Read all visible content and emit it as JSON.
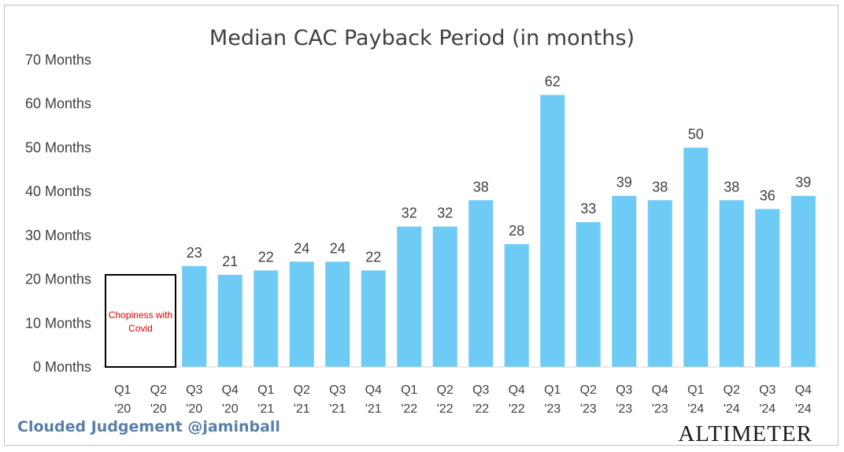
{
  "chart_data": {
    "type": "bar",
    "title": "Median CAC Payback Period (in months)",
    "categories": [
      [
        "Q1",
        "'20"
      ],
      [
        "Q2",
        "'20"
      ],
      [
        "Q3",
        "'20"
      ],
      [
        "Q4",
        "'20"
      ],
      [
        "Q1",
        "'21"
      ],
      [
        "Q2",
        "'21"
      ],
      [
        "Q3",
        "'21"
      ],
      [
        "Q4",
        "'21"
      ],
      [
        "Q1",
        "'22"
      ],
      [
        "Q2",
        "'22"
      ],
      [
        "Q3",
        "'22"
      ],
      [
        "Q4",
        "'22"
      ],
      [
        "Q1",
        "'23"
      ],
      [
        "Q2",
        "'23"
      ],
      [
        "Q3",
        "'23"
      ],
      [
        "Q4",
        "'23"
      ],
      [
        "Q1",
        "'24"
      ],
      [
        "Q2",
        "'24"
      ],
      [
        "Q3",
        "'24"
      ],
      [
        "Q4",
        "'24"
      ]
    ],
    "values": [
      null,
      null,
      23,
      21,
      22,
      24,
      24,
      22,
      32,
      32,
      38,
      28,
      62,
      33,
      39,
      38,
      50,
      38,
      36,
      39
    ],
    "data_labels": [
      "",
      "",
      "23",
      "21",
      "22",
      "24",
      "24",
      "22",
      "32",
      "32",
      "38",
      "28",
      "62",
      "33",
      "39",
      "38",
      "50",
      "38",
      "36",
      "39"
    ],
    "y_ticks": [
      "0 Months",
      "10 Months",
      "20 Months",
      "30 Months",
      "40 Months",
      "50 Months",
      "60 Months",
      "70 Months"
    ],
    "ylim": [
      0,
      70
    ],
    "xlabel": "",
    "ylabel": "",
    "grid": false,
    "bar_color": "#6ecbf5",
    "annotation": {
      "lines": [
        "Chopiness with",
        "Covid"
      ],
      "box_range_categories": [
        0,
        1
      ],
      "box_top_value": 21,
      "color": "#e00000"
    }
  },
  "footer": {
    "credit": "Clouded Judgement @jaminball",
    "brand": "ALTIMETER"
  },
  "colors": {
    "text": "#404040",
    "footer_text": "#5a7fa8",
    "annotation": "#e00000"
  }
}
